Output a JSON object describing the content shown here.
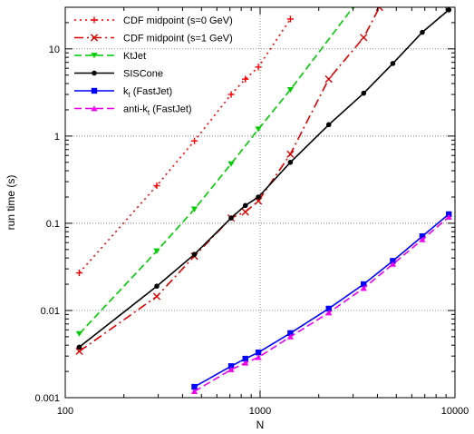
{
  "chart_data": {
    "type": "line",
    "xlabel": "N",
    "ylabel": "run time (s)",
    "xscale": "log",
    "yscale": "log",
    "xlim": [
      100,
      10000
    ],
    "ylim": [
      0.001,
      30
    ],
    "grid": true,
    "legend_position": "top-left",
    "x_ticks": [
      {
        "value": 100,
        "label": "100"
      },
      {
        "value": 1000,
        "label": "1000"
      },
      {
        "value": 10000,
        "label": "10000"
      }
    ],
    "y_ticks": [
      {
        "value": 0.001,
        "label": "0.001"
      },
      {
        "value": 0.01,
        "label": "0.01"
      },
      {
        "value": 0.1,
        "label": "0.1"
      },
      {
        "value": 1,
        "label": "1"
      },
      {
        "value": 10,
        "label": "10"
      }
    ],
    "series": [
      {
        "name": "CDF midpoint (s=0 GeV)",
        "name_parts": [
          "CDF midpoint (s=0 GeV)"
        ],
        "color": "#ff0000",
        "dash": "dotted",
        "marker": "plus",
        "x": [
          118,
          295,
          460,
          710,
          840,
          980,
          1430
        ],
        "y": [
          0.027,
          0.27,
          0.88,
          3.0,
          4.5,
          6.2,
          22
        ]
      },
      {
        "name": "CDF midpoint (s=1 GeV)",
        "name_parts": [
          "CDF midpoint (s=1 GeV)"
        ],
        "color": "#dd0000",
        "dash": "dashdot",
        "marker": "cross",
        "x": [
          118,
          295,
          460,
          710,
          840,
          980,
          1430,
          2250,
          3400,
          4100
        ],
        "y": [
          0.0034,
          0.0145,
          0.042,
          0.115,
          0.135,
          0.18,
          0.62,
          4.5,
          13.5,
          30
        ]
      },
      {
        "name": "KtJet",
        "name_parts": [
          "KtJet"
        ],
        "color": "#00cc00",
        "dash": "dashed",
        "marker": "triangle-down",
        "x": [
          118,
          295,
          460,
          710,
          980,
          1430,
          3000
        ],
        "y": [
          0.0054,
          0.048,
          0.145,
          0.48,
          1.2,
          3.4,
          30
        ]
      },
      {
        "name": "SISCone",
        "name_parts": [
          "SISCone"
        ],
        "color": "#000000",
        "dash": "solid",
        "marker": "dot",
        "x": [
          118,
          295,
          460,
          710,
          840,
          980,
          1430,
          2250,
          3400,
          4800,
          6800,
          9300
        ],
        "y": [
          0.0038,
          0.019,
          0.044,
          0.115,
          0.16,
          0.2,
          0.5,
          1.35,
          3.1,
          6.8,
          15.5,
          28
        ]
      },
      {
        "name": "kt (FastJet)",
        "name_parts": [
          "k",
          "t",
          " (FastJet)"
        ],
        "color": "#0000ff",
        "dash": "solid",
        "marker": "square",
        "x": [
          460,
          710,
          840,
          980,
          1430,
          2250,
          3400,
          4800,
          6800,
          9300
        ],
        "y": [
          0.00133,
          0.0023,
          0.0028,
          0.0033,
          0.0055,
          0.0105,
          0.02,
          0.037,
          0.071,
          0.127
        ]
      },
      {
        "name": "anti-kt (FastJet)",
        "name_parts": [
          "anti-k",
          "t",
          " (FastJet)"
        ],
        "color": "#ee00ee",
        "dash": "dashed",
        "marker": "triangle-up",
        "x": [
          460,
          710,
          840,
          980,
          1430,
          2250,
          3400,
          4800,
          6800,
          9300
        ],
        "y": [
          0.00118,
          0.0021,
          0.0025,
          0.0029,
          0.005,
          0.0094,
          0.018,
          0.034,
          0.065,
          0.118
        ]
      }
    ]
  }
}
